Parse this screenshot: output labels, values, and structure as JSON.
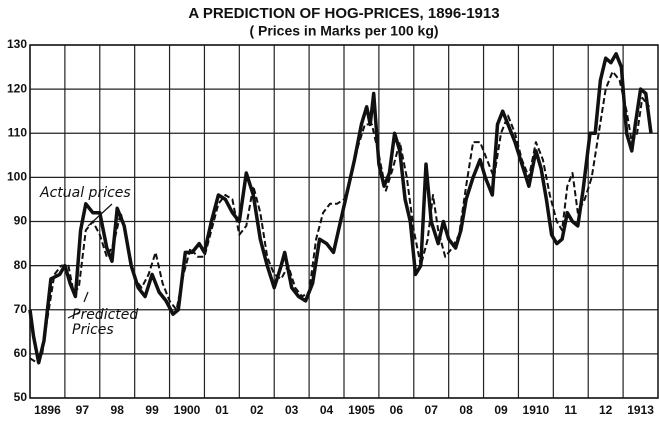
{
  "chart_data": {
    "type": "line",
    "title": "A PREDICTION OF HOG-PRICES, 1896-1913",
    "subtitle": "( Prices in Marks per 100 kg)",
    "xlim": [
      1896,
      1914
    ],
    "xticks": [
      {
        "value": 1896,
        "label": "1896"
      },
      {
        "value": 1897,
        "label": "97"
      },
      {
        "value": 1898,
        "label": "98"
      },
      {
        "value": 1899,
        "label": "99"
      },
      {
        "value": 1900,
        "label": "1900"
      },
      {
        "value": 1901,
        "label": "01"
      },
      {
        "value": 1902,
        "label": "02"
      },
      {
        "value": 1903,
        "label": "03"
      },
      {
        "value": 1904,
        "label": "04"
      },
      {
        "value": 1905,
        "label": "1905"
      },
      {
        "value": 1906,
        "label": "06"
      },
      {
        "value": 1907,
        "label": "07"
      },
      {
        "value": 1908,
        "label": "08"
      },
      {
        "value": 1909,
        "label": "09"
      },
      {
        "value": 1910,
        "label": "1910"
      },
      {
        "value": 1911,
        "label": "11"
      },
      {
        "value": 1912,
        "label": "12"
      },
      {
        "value": 1913,
        "label": "1913"
      }
    ],
    "ylim": [
      50,
      130
    ],
    "yticks": [
      50,
      60,
      70,
      80,
      90,
      100,
      110,
      120,
      130
    ],
    "grid": true,
    "series": [
      {
        "name": "Actual prices",
        "color": "#111111",
        "style": "solid",
        "x": [
          1896.0,
          1896.1,
          1896.25,
          1896.4,
          1896.6,
          1896.85,
          1897.0,
          1897.15,
          1897.3,
          1897.45,
          1897.6,
          1897.8,
          1898.0,
          1898.2,
          1898.35,
          1898.5,
          1898.7,
          1898.9,
          1899.1,
          1899.3,
          1899.5,
          1899.7,
          1899.9,
          1900.1,
          1900.25,
          1900.45,
          1900.65,
          1900.85,
          1901.0,
          1901.2,
          1901.4,
          1901.6,
          1901.8,
          1902.0,
          1902.2,
          1902.4,
          1902.6,
          1902.8,
          1903.0,
          1903.2,
          1903.3,
          1903.5,
          1903.7,
          1903.9,
          1904.1,
          1904.3,
          1904.5,
          1904.7,
          1904.9,
          1905.1,
          1905.3,
          1905.5,
          1905.65,
          1905.75,
          1905.85,
          1906.0,
          1906.15,
          1906.3,
          1906.45,
          1906.6,
          1906.75,
          1906.9,
          1907.05,
          1907.2,
          1907.35,
          1907.5,
          1907.7,
          1907.85,
          1908.0,
          1908.2,
          1908.35,
          1908.5,
          1908.7,
          1908.9,
          1909.05,
          1909.25,
          1909.4,
          1909.55,
          1909.7,
          1909.9,
          1910.1,
          1910.3,
          1910.5,
          1910.65,
          1910.8,
          1910.95,
          1911.1,
          1911.25,
          1911.4,
          1911.55,
          1911.7,
          1911.85,
          1912.05,
          1912.2,
          1912.35,
          1912.5,
          1912.65,
          1912.8,
          1912.95,
          1913.1,
          1913.25,
          1913.35,
          1913.5,
          1913.65,
          1913.8
        ],
        "values": [
          70,
          64,
          58,
          63,
          77,
          78,
          80,
          76,
          73,
          88,
          94,
          92,
          92,
          84,
          81,
          93,
          89,
          80,
          75,
          73,
          78,
          74,
          72,
          69,
          70,
          83,
          83,
          85,
          83,
          90,
          96,
          95,
          92,
          90,
          101,
          96,
          86,
          80,
          75,
          80,
          83,
          75,
          73,
          72,
          76,
          86,
          85,
          83,
          90,
          97,
          104,
          112,
          116,
          112,
          119,
          103,
          98,
          101,
          110,
          106,
          95,
          90,
          78,
          80,
          103,
          90,
          85,
          90,
          86,
          84,
          88,
          95,
          100,
          104,
          100,
          96,
          112,
          115,
          112,
          108,
          103,
          98,
          106,
          102,
          95,
          87,
          85,
          86,
          92,
          90,
          89,
          97,
          110,
          110,
          122,
          127,
          126,
          128,
          125,
          110,
          106,
          112,
          120,
          119,
          110
        ]
      },
      {
        "name": "Predicted Prices",
        "color": "#111111",
        "style": "dashed",
        "x": [
          1896.0,
          1896.2,
          1896.35,
          1896.5,
          1896.7,
          1896.9,
          1897.1,
          1897.25,
          1897.4,
          1897.6,
          1897.8,
          1898.0,
          1898.2,
          1898.4,
          1898.6,
          1898.8,
          1899.0,
          1899.2,
          1899.4,
          1899.6,
          1899.8,
          1900.0,
          1900.2,
          1900.4,
          1900.6,
          1900.8,
          1901.0,
          1901.2,
          1901.4,
          1901.6,
          1901.8,
          1902.0,
          1902.2,
          1902.4,
          1902.6,
          1902.8,
          1903.0,
          1903.2,
          1903.4,
          1903.6,
          1903.8,
          1904.0,
          1904.2,
          1904.4,
          1904.6,
          1904.8,
          1905.0,
          1905.2,
          1905.4,
          1905.6,
          1905.8,
          1906.0,
          1906.2,
          1906.4,
          1906.6,
          1906.8,
          1907.0,
          1907.2,
          1907.4,
          1907.55,
          1907.7,
          1907.9,
          1908.1,
          1908.3,
          1908.5,
          1908.7,
          1908.9,
          1909.1,
          1909.3,
          1909.5,
          1909.7,
          1909.9,
          1910.1,
          1910.3,
          1910.5,
          1910.7,
          1910.9,
          1911.1,
          1911.25,
          1911.4,
          1911.55,
          1911.7,
          1911.9,
          1912.1,
          1912.3,
          1912.5,
          1912.7,
          1912.9,
          1913.1,
          1913.25,
          1913.4,
          1913.55,
          1913.75
        ],
        "values": [
          59,
          58,
          60,
          68,
          78,
          80,
          80,
          74,
          75,
          88,
          90,
          87,
          82,
          85,
          92,
          85,
          77,
          75,
          78,
          83,
          76,
          72,
          70,
          78,
          84,
          82,
          82,
          88,
          94,
          96,
          95,
          87,
          89,
          98,
          92,
          82,
          78,
          77,
          80,
          75,
          73,
          74,
          86,
          92,
          94,
          94,
          95,
          100,
          107,
          112,
          112,
          105,
          97,
          102,
          108,
          100,
          88,
          80,
          86,
          96,
          88,
          82,
          84,
          87,
          98,
          108,
          108,
          104,
          100,
          110,
          114,
          110,
          104,
          100,
          108,
          104,
          96,
          90,
          88,
          98,
          101,
          92,
          95,
          100,
          110,
          120,
          124,
          122,
          115,
          108,
          110,
          118,
          116
        ]
      }
    ]
  }
}
